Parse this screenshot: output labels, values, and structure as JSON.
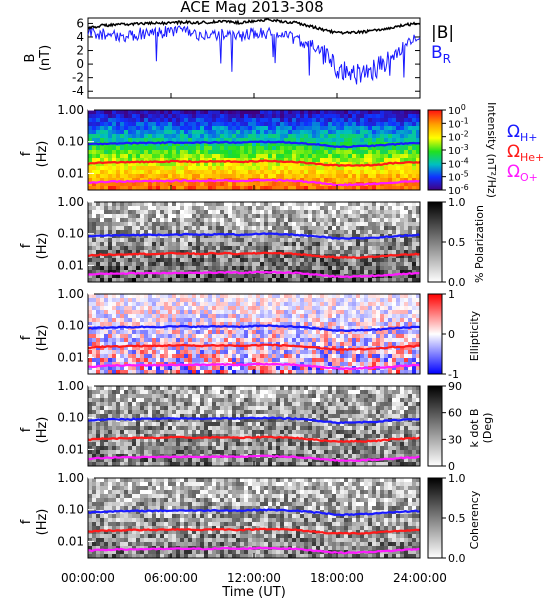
{
  "title": "ACE Mag 2013-308",
  "x_axis": {
    "label": "Time (UT)",
    "ticks": [
      "00:00:00",
      "06:00:00",
      "12:00:00",
      "18:00:00",
      "24:00:00"
    ],
    "range_hours": [
      0,
      24
    ]
  },
  "colors": {
    "b_total": "#000000",
    "b_r": "#1a1aff",
    "h_plus": "#1a1aff",
    "he_plus": "#ff1a1a",
    "o_plus": "#ff1aff"
  },
  "panels": {
    "mag": {
      "ylabel_line1": "B",
      "ylabel_line2": "(nT)",
      "yticks": [
        "6",
        "4",
        "2",
        "0",
        "-2",
        "-4"
      ],
      "legend_b": "|B|",
      "legend_br": "B",
      "legend_br_sub": "R"
    },
    "intensity": {
      "ylabel_line1": "f",
      "ylabel_line2": "(Hz)",
      "yticks": [
        "1.00",
        "0.10",
        "0.01"
      ],
      "cbar_ticks": [
        "10",
        "10",
        "10",
        "10",
        "10",
        "10",
        "10"
      ],
      "cbar_exps": [
        "0",
        "-1",
        "-2",
        "-3",
        "-4",
        "-5",
        "-6"
      ],
      "cbar_label": "Intensity (nT²/Hz)",
      "legend": [
        {
          "symbol": "Ω",
          "sub": "H+"
        },
        {
          "symbol": "Ω",
          "sub": "He+"
        },
        {
          "symbol": "Ω",
          "sub": "O+"
        }
      ]
    },
    "polarization": {
      "ylabel_line1": "f",
      "ylabel_line2": "(Hz)",
      "yticks": [
        "1.00",
        "0.10",
        "0.01"
      ],
      "cbar_ticks": [
        "1.0",
        "0.5",
        "0.0"
      ],
      "cbar_label": "% Polarization"
    },
    "ellipticity": {
      "ylabel_line1": "f",
      "ylabel_line2": "(Hz)",
      "yticks": [
        "1.00",
        "0.10",
        "0.01"
      ],
      "cbar_ticks": [
        "1",
        "0",
        "-1"
      ],
      "cbar_label": "Ellipticity"
    },
    "kdotb": {
      "ylabel_line1": "f",
      "ylabel_line2": "(Hz)",
      "yticks": [
        "1.00",
        "0.10",
        "0.01"
      ],
      "cbar_ticks": [
        "90",
        "60",
        "30",
        "0"
      ],
      "cbar_label_line1": "k dot B",
      "cbar_label_line2": "(Deg)"
    },
    "coherency": {
      "ylabel_line1": "f",
      "ylabel_line2": "(Hz)",
      "yticks": [
        "1.00",
        "0.10",
        "0.01"
      ],
      "cbar_ticks": [
        "1.0",
        "0.5",
        "0.0"
      ],
      "cbar_label": "Coherency"
    }
  },
  "chart_data": [
    {
      "type": "line",
      "ylabel": "B (nT)",
      "ylim": [
        -5,
        6.8
      ],
      "x": [
        0,
        1,
        2,
        3,
        4,
        5,
        6,
        7,
        8,
        9,
        10,
        11,
        12,
        13,
        14,
        15,
        16,
        17,
        18,
        19,
        20,
        21,
        22,
        23,
        24
      ],
      "series": [
        {
          "name": "|B|",
          "values": [
            5.3,
            5.7,
            5.8,
            5.9,
            6.0,
            6.0,
            6.1,
            6.2,
            6.1,
            6.2,
            6.3,
            6.1,
            6.4,
            6.5,
            6.3,
            6.1,
            5.6,
            5.1,
            4.6,
            4.6,
            4.8,
            5.0,
            5.4,
            5.8,
            6.0
          ]
        },
        {
          "name": "B_R",
          "values": [
            4.8,
            4.4,
            4.3,
            4.1,
            4.6,
            4.6,
            4.9,
            4.8,
            3.9,
            4.3,
            4.4,
            4.1,
            4.6,
            4.5,
            4.3,
            3.7,
            3.0,
            1.6,
            -0.5,
            -1.6,
            -1.3,
            -0.3,
            0.6,
            3.0,
            4.4
          ]
        }
      ]
    },
    {
      "type": "heatmap",
      "title": "Intensity (nT^2/Hz)",
      "xlabel": "Time (UT)",
      "ylabel": "f (Hz)",
      "yscale": "log",
      "ylim": [
        0.003,
        1.0
      ],
      "zscale": "log",
      "zlim": [
        1e-06,
        1
      ]
    },
    {
      "type": "heatmap",
      "title": "% Polarization",
      "xlabel": "Time (UT)",
      "ylabel": "f (Hz)",
      "yscale": "log",
      "ylim": [
        0.003,
        1.0
      ],
      "zlim": [
        0,
        1
      ]
    },
    {
      "type": "heatmap",
      "title": "Ellipticity",
      "xlabel": "Time (UT)",
      "ylabel": "f (Hz)",
      "yscale": "log",
      "ylim": [
        0.003,
        1.0
      ],
      "zlim": [
        -1,
        1
      ]
    },
    {
      "type": "heatmap",
      "title": "k dot B (Deg)",
      "xlabel": "Time (UT)",
      "ylabel": "f (Hz)",
      "yscale": "log",
      "ylim": [
        0.003,
        1.0
      ],
      "zlim": [
        0,
        90
      ]
    },
    {
      "type": "heatmap",
      "title": "Coherency",
      "xlabel": "Time (UT)",
      "ylabel": "f (Hz)",
      "yscale": "log",
      "ylim": [
        0.003,
        1.0
      ],
      "zlim": [
        0,
        1
      ]
    },
    {
      "type": "line",
      "ylabel": "f (Hz)",
      "yscale": "log",
      "x": [
        0,
        1,
        2,
        3,
        4,
        5,
        6,
        7,
        8,
        9,
        10,
        11,
        12,
        13,
        14,
        15,
        16,
        17,
        18,
        19,
        20,
        21,
        22,
        23,
        24
      ],
      "series": [
        {
          "name": "Ω H+",
          "values": [
            0.082,
            0.087,
            0.089,
            0.09,
            0.092,
            0.092,
            0.094,
            0.095,
            0.093,
            0.095,
            0.096,
            0.093,
            0.098,
            0.099,
            0.096,
            0.093,
            0.085,
            0.078,
            0.07,
            0.07,
            0.073,
            0.076,
            0.082,
            0.088,
            0.092
          ]
        },
        {
          "name": "Ω He+",
          "values": [
            0.02,
            0.022,
            0.022,
            0.023,
            0.023,
            0.023,
            0.024,
            0.024,
            0.023,
            0.024,
            0.024,
            0.023,
            0.024,
            0.025,
            0.024,
            0.023,
            0.021,
            0.019,
            0.018,
            0.018,
            0.018,
            0.019,
            0.021,
            0.022,
            0.023
          ]
        },
        {
          "name": "Ω O+",
          "values": [
            0.0051,
            0.0054,
            0.0056,
            0.0056,
            0.0057,
            0.0057,
            0.0058,
            0.0059,
            0.0058,
            0.0059,
            0.006,
            0.0058,
            0.0061,
            0.0062,
            0.006,
            0.0058,
            0.0053,
            0.0049,
            0.0044,
            0.0044,
            0.0046,
            0.0048,
            0.0051,
            0.0055,
            0.0057
          ]
        }
      ]
    }
  ]
}
